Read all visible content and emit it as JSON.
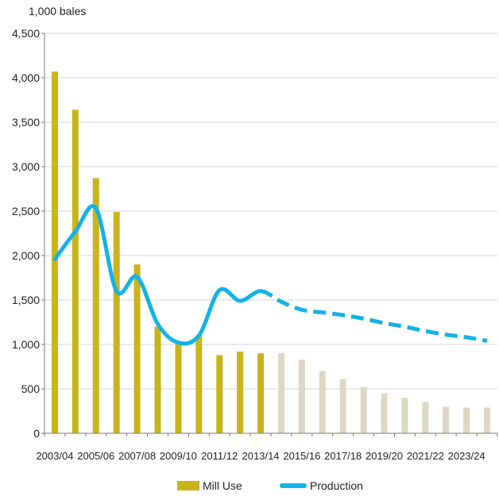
{
  "colors": {
    "bar_actual": "#c9b41a",
    "bar_projected": "#ddd8c4",
    "line": "#13b2e6",
    "grid": "#d6d6d6",
    "axis": "#7a7a7a"
  },
  "chart_data": {
    "type": "bar",
    "unit_label": "1,000 bales",
    "categories": [
      "2003/04",
      "2004/05",
      "2005/06",
      "2006/07",
      "2007/08",
      "2008/09",
      "2009/10",
      "2010/11",
      "2011/12",
      "2012/13",
      "2013/14",
      "2014/15",
      "2015/16",
      "2016/17",
      "2017/18",
      "2018/19",
      "2019/20",
      "2020/21",
      "2021/22",
      "2022/23",
      "2023/24",
      "2024/25"
    ],
    "x_tick_labels": [
      "2003/04",
      "2005/06",
      "2007/08",
      "2009/10",
      "2011/12",
      "2013/14",
      "2015/16",
      "2017/18",
      "2019/20",
      "2021/22",
      "2023/24"
    ],
    "y_tick_labels": [
      "0",
      "500",
      "1,000",
      "1,500",
      "2,000",
      "2,500",
      "3,000",
      "3,500",
      "4,000",
      "4,500"
    ],
    "ylim": [
      0,
      4500
    ],
    "grid": true,
    "legend_position": "bottom",
    "first_projected_index": 11,
    "series": [
      {
        "name": "Mill Use",
        "type": "bar",
        "values": [
          4070,
          3640,
          2870,
          2490,
          1900,
          1200,
          1000,
          1100,
          880,
          920,
          900,
          900,
          830,
          700,
          610,
          520,
          450,
          400,
          350,
          300,
          290,
          290
        ]
      },
      {
        "name": "Production",
        "type": "line",
        "values": [
          1960,
          2270,
          2530,
          1600,
          1760,
          1230,
          1020,
          1100,
          1610,
          1490,
          1600,
          1480,
          1390,
          1360,
          1330,
          1290,
          1240,
          1200,
          1150,
          1110,
          1080,
          1040
        ]
      }
    ]
  }
}
